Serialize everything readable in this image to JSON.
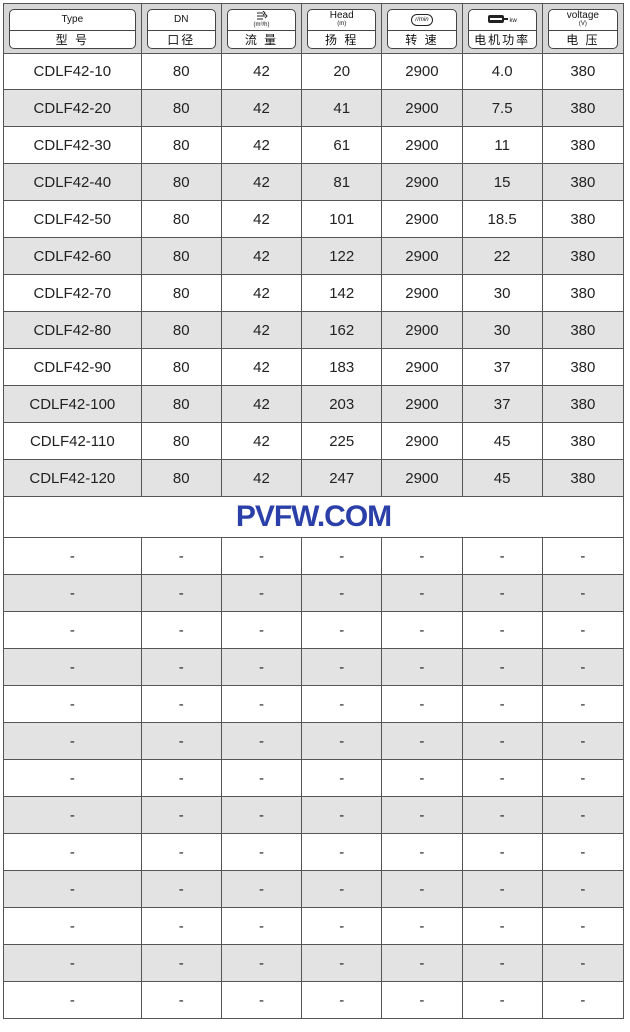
{
  "header": [
    {
      "top": "Type",
      "unit": "",
      "bottom": "型 号",
      "icon": ""
    },
    {
      "top": "DN",
      "unit": "",
      "bottom": "口径",
      "icon": ""
    },
    {
      "top": "",
      "unit": "(m³/h)",
      "bottom": "流 量",
      "icon": "flow-icon"
    },
    {
      "top": "Head",
      "unit": "(m)",
      "bottom": "扬 程",
      "icon": ""
    },
    {
      "top": "",
      "unit": "",
      "bottom": "转 速",
      "icon": "rpm-icon",
      "icon_text": "r/min"
    },
    {
      "top": "",
      "unit": "kw",
      "bottom": "电机功率",
      "icon": "motor-icon"
    },
    {
      "top": "voltage",
      "unit": "(V)",
      "bottom": "电 压",
      "icon": ""
    }
  ],
  "rows": [
    [
      "CDLF42-10",
      "80",
      "42",
      "20",
      "2900",
      "4.0",
      "380"
    ],
    [
      "CDLF42-20",
      "80",
      "42",
      "41",
      "2900",
      "7.5",
      "380"
    ],
    [
      "CDLF42-30",
      "80",
      "42",
      "61",
      "2900",
      "11",
      "380"
    ],
    [
      "CDLF42-40",
      "80",
      "42",
      "81",
      "2900",
      "15",
      "380"
    ],
    [
      "CDLF42-50",
      "80",
      "42",
      "101",
      "2900",
      "18.5",
      "380"
    ],
    [
      "CDLF42-60",
      "80",
      "42",
      "122",
      "2900",
      "22",
      "380"
    ],
    [
      "CDLF42-70",
      "80",
      "42",
      "142",
      "2900",
      "30",
      "380"
    ],
    [
      "CDLF42-80",
      "80",
      "42",
      "162",
      "2900",
      "30",
      "380"
    ],
    [
      "CDLF42-90",
      "80",
      "42",
      "183",
      "2900",
      "37",
      "380"
    ],
    [
      "CDLF42-100",
      "80",
      "42",
      "203",
      "2900",
      "37",
      "380"
    ],
    [
      "CDLF42-110",
      "80",
      "42",
      "225",
      "2900",
      "45",
      "380"
    ],
    [
      "CDLF42-120",
      "80",
      "42",
      "247",
      "2900",
      "45",
      "380"
    ],
    [
      "-",
      "-",
      "-",
      "-",
      "-",
      "-",
      "-"
    ],
    [
      "-",
      "-",
      "-",
      "-",
      "-",
      "-",
      "-"
    ],
    [
      "-",
      "-",
      "-",
      "-",
      "-",
      "-",
      "-"
    ],
    [
      "-",
      "-",
      "-",
      "-",
      "-",
      "-",
      "-"
    ],
    [
      "-",
      "-",
      "-",
      "-",
      "-",
      "-",
      "-"
    ],
    [
      "-",
      "-",
      "-",
      "-",
      "-",
      "-",
      "-"
    ],
    [
      "-",
      "-",
      "-",
      "-",
      "-",
      "-",
      "-"
    ],
    [
      "-",
      "-",
      "-",
      "-",
      "-",
      "-",
      "-"
    ],
    [
      "-",
      "-",
      "-",
      "-",
      "-",
      "-",
      "-"
    ],
    [
      "-",
      "-",
      "-",
      "-",
      "-",
      "-",
      "-"
    ],
    [
      "-",
      "-",
      "-",
      "-",
      "-",
      "-",
      "-"
    ],
    [
      "-",
      "-",
      "-",
      "-",
      "-",
      "-",
      "-"
    ],
    [
      "-",
      "-",
      "-",
      "-",
      "-",
      "-",
      "-"
    ]
  ],
  "watermark": "PVFW.COM",
  "colors": {
    "alt_row": "#e3e3e3",
    "header_bg": "#d6d6d6",
    "watermark": "#2b3fa8"
  }
}
